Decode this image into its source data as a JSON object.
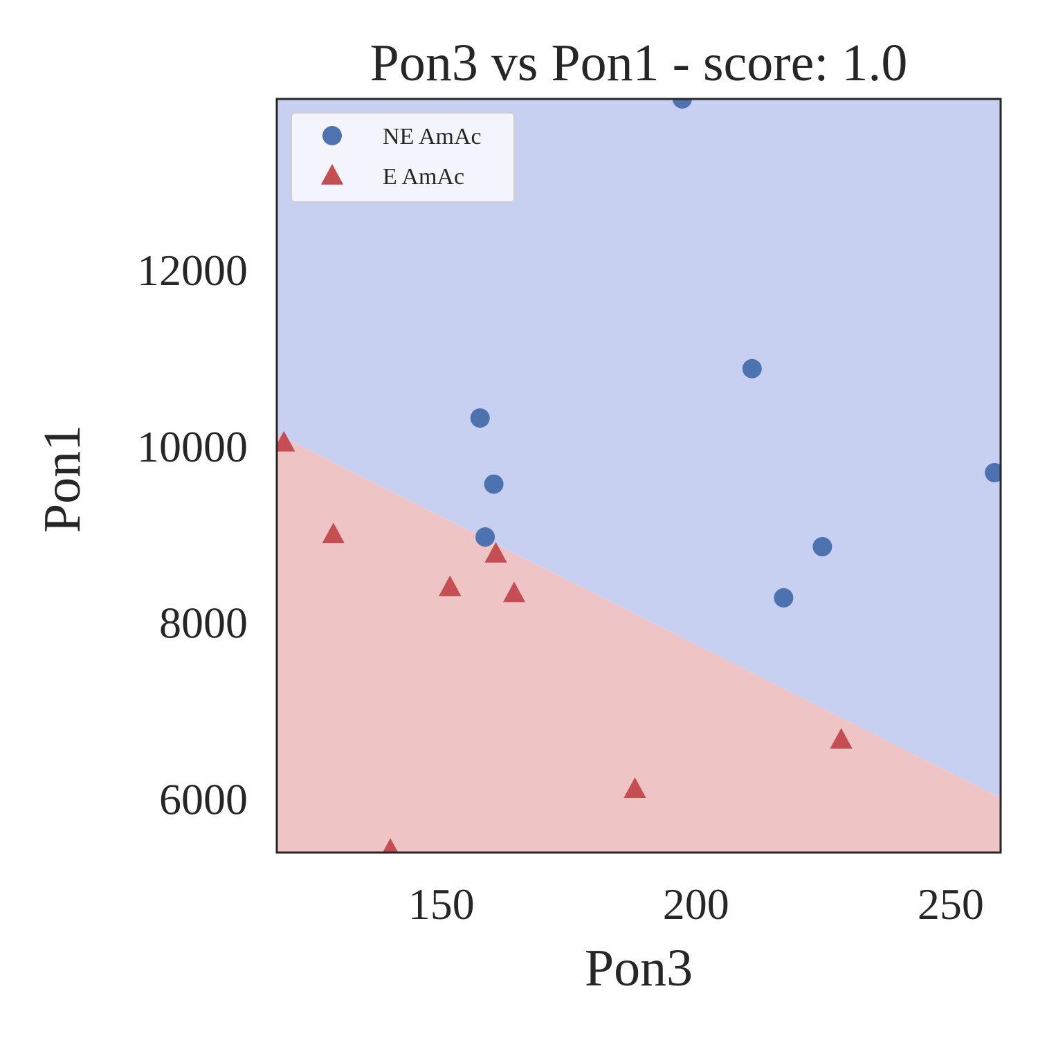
{
  "chart_data": {
    "type": "scatter",
    "title": "Pon3 vs Pon1 - score: 1.0",
    "xlabel": "Pon3",
    "ylabel": "Pon1",
    "xlim": [
      117.7,
      259.8
    ],
    "ylim": [
      5390,
      13940
    ],
    "xticks": [
      150,
      200,
      250
    ],
    "yticks": [
      6000,
      8000,
      10000,
      12000
    ],
    "grid": false,
    "legend_position": "top-left",
    "decision_boundary": {
      "points": [
        [
          117.7,
          10140
        ],
        [
          259.8,
          6010
        ]
      ],
      "upper_region_class": "NE AmAc",
      "lower_region_class": "E AmAc",
      "upper_color": "#c8d0f1",
      "lower_color": "#efc4c4"
    },
    "series": [
      {
        "name": "NE AmAc",
        "marker": "circle",
        "color": "#4c72b0",
        "points": [
          [
            197.3,
            13940
          ],
          [
            211.0,
            10880
          ],
          [
            157.6,
            10320
          ],
          [
            160.3,
            9570
          ],
          [
            158.6,
            8970
          ],
          [
            224.8,
            8860
          ],
          [
            217.2,
            8280
          ],
          [
            258.6,
            9700
          ]
        ]
      },
      {
        "name": "E AmAc",
        "marker": "triangle",
        "color": "#c44e52",
        "points": [
          [
            119.1,
            10040
          ],
          [
            128.8,
            9000
          ],
          [
            151.7,
            8400
          ],
          [
            160.7,
            8780
          ],
          [
            164.3,
            8330
          ],
          [
            188.0,
            6110
          ],
          [
            228.5,
            6670
          ],
          [
            140.0,
            5420
          ]
        ]
      }
    ]
  }
}
